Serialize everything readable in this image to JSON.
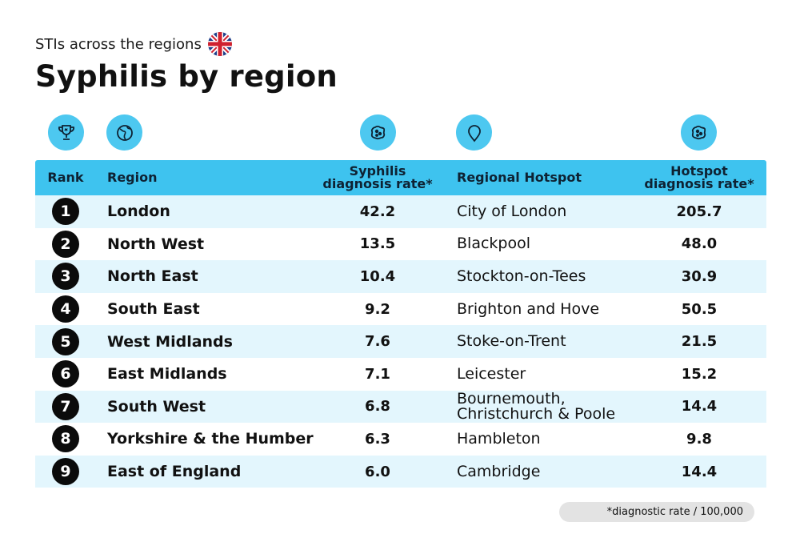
{
  "header": {
    "subtitle": "STIs across the regions",
    "title": "Syphilis by region"
  },
  "icons": [
    "trophy-icon",
    "globe-icon",
    "bacteria-icon",
    "location-pin-icon",
    "bacteria-icon"
  ],
  "colors": {
    "accent": "#3ec3ef",
    "icon_bg": "#4dc8f0",
    "row_alt": "#e3f6fd",
    "badge": "#0b0b0b"
  },
  "table": {
    "headers": {
      "rank": "Rank",
      "region": "Region",
      "rate_line1": "Syphilis",
      "rate_line2": "diagnosis rate*",
      "hotspot": "Regional Hotspot",
      "hrate_line1": "Hotspot",
      "hrate_line2": "diagnosis rate*"
    },
    "rows": [
      {
        "rank": "1",
        "region": "London",
        "rate": "42.2",
        "hotspot": "City of London",
        "hotspot_rate": "205.7"
      },
      {
        "rank": "2",
        "region": "North West",
        "rate": "13.5",
        "hotspot": "Blackpool",
        "hotspot_rate": "48.0"
      },
      {
        "rank": "3",
        "region": "North East",
        "rate": "10.4",
        "hotspot": "Stockton-on-Tees",
        "hotspot_rate": "30.9"
      },
      {
        "rank": "4",
        "region": "South East",
        "rate": "9.2",
        "hotspot": "Brighton and Hove",
        "hotspot_rate": "50.5"
      },
      {
        "rank": "5",
        "region": "West Midlands",
        "rate": "7.6",
        "hotspot": "Stoke-on-Trent",
        "hotspot_rate": "21.5"
      },
      {
        "rank": "6",
        "region": "East Midlands",
        "rate": "7.1",
        "hotspot": "Leicester",
        "hotspot_rate": "15.2"
      },
      {
        "rank": "7",
        "region": "South West",
        "rate": "6.8",
        "hotspot": "Bournemouth,\nChristchurch & Poole",
        "hotspot_rate": "14.4"
      },
      {
        "rank": "8",
        "region": "Yorkshire & the Humber",
        "rate": "6.3",
        "hotspot": "Hambleton",
        "hotspot_rate": "9.8"
      },
      {
        "rank": "9",
        "region": "East of England",
        "rate": "6.0",
        "hotspot": "Cambridge",
        "hotspot_rate": "14.4"
      }
    ]
  },
  "footnote": "*diagnostic rate / 100,000"
}
